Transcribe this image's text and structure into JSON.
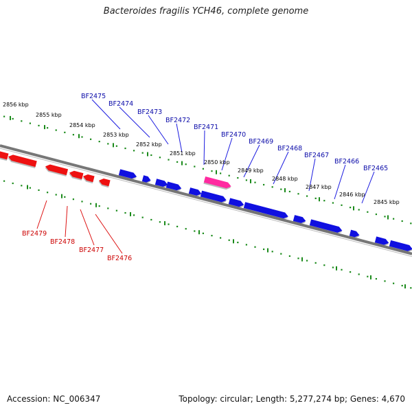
{
  "title": "Bacteroides fragilis YCH46, complete genome",
  "footer": {
    "accession": "Accession: NC_006347",
    "summary": "Topology: circular; Length: 5,277,274 bp; Genes: 4,670"
  },
  "colors": {
    "forward_gene": "#1010e0",
    "reverse_gene": "#ee1111",
    "highlight_gene": "#ff2aa0",
    "backbone": "#777777",
    "tick_track": "#1a8a1a",
    "forward_label": "#0a0aa8",
    "reverse_label": "#cc0000"
  },
  "scale_labels": [
    "2856 kbp",
    "2855 kbp",
    "2854 kbp",
    "2853 kbp",
    "2852 kbp",
    "2851 kbp",
    "2850 kbp",
    "2849 kbp",
    "2848 kbp",
    "2847 kbp",
    "2846 kbp",
    "2845 kbp"
  ],
  "forward_gene_labels": [
    "BF2475",
    "BF2474",
    "BF2473",
    "BF2472",
    "BF2471",
    "BF2470",
    "BF2469",
    "BF2468",
    "BF2467",
    "BF2466",
    "BF2465"
  ],
  "reverse_gene_labels": [
    "BF2479",
    "BF2478",
    "BF2477",
    "BF2476"
  ],
  "highlighted_gene": "BF2471"
}
